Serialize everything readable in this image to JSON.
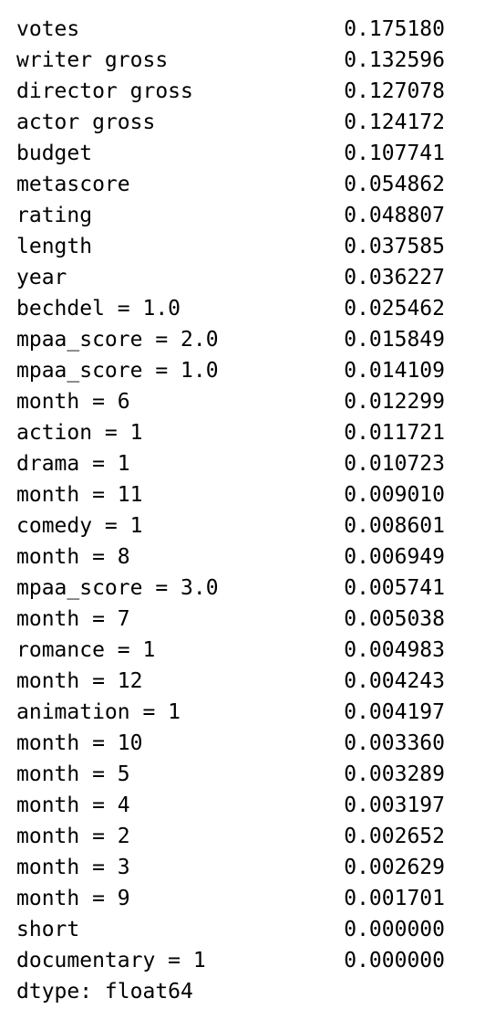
{
  "series": [
    {
      "label": "votes",
      "value": "0.175180"
    },
    {
      "label": "writer gross",
      "value": "0.132596"
    },
    {
      "label": "director gross",
      "value": "0.127078"
    },
    {
      "label": "actor gross",
      "value": "0.124172"
    },
    {
      "label": "budget",
      "value": "0.107741"
    },
    {
      "label": "metascore",
      "value": "0.054862"
    },
    {
      "label": "rating",
      "value": "0.048807"
    },
    {
      "label": "length",
      "value": "0.037585"
    },
    {
      "label": "year",
      "value": "0.036227"
    },
    {
      "label": "bechdel = 1.0",
      "value": "0.025462"
    },
    {
      "label": "mpaa_score = 2.0",
      "value": "0.015849"
    },
    {
      "label": "mpaa_score = 1.0",
      "value": "0.014109"
    },
    {
      "label": "month = 6",
      "value": "0.012299"
    },
    {
      "label": "action = 1",
      "value": "0.011721"
    },
    {
      "label": "drama = 1",
      "value": "0.010723"
    },
    {
      "label": "month = 11",
      "value": "0.009010"
    },
    {
      "label": "comedy = 1",
      "value": "0.008601"
    },
    {
      "label": "month = 8",
      "value": "0.006949"
    },
    {
      "label": "mpaa_score = 3.0",
      "value": "0.005741"
    },
    {
      "label": "month = 7",
      "value": "0.005038"
    },
    {
      "label": "romance = 1",
      "value": "0.004983"
    },
    {
      "label": "month = 12",
      "value": "0.004243"
    },
    {
      "label": "animation = 1",
      "value": "0.004197"
    },
    {
      "label": "month = 10",
      "value": "0.003360"
    },
    {
      "label": "month = 5",
      "value": "0.003289"
    },
    {
      "label": "month = 4",
      "value": "0.003197"
    },
    {
      "label": "month = 2",
      "value": "0.002652"
    },
    {
      "label": "month = 3",
      "value": "0.002629"
    },
    {
      "label": "month = 9",
      "value": "0.001701"
    },
    {
      "label": "short",
      "value": "0.000000"
    },
    {
      "label": "documentary = 1",
      "value": "0.000000"
    }
  ],
  "dtype": "dtype: float64"
}
